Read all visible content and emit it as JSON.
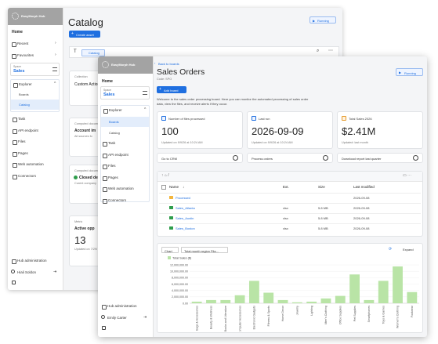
{
  "back_window": {
    "brand": "EasyMorph Hub",
    "home": "Home",
    "nav_top": [
      "Recent",
      "Favourites"
    ],
    "space_label": "Space",
    "space_name": "Sales",
    "explorer": "Explorer",
    "explorer_items": [
      "Boards",
      "Catalog"
    ],
    "nav_items": [
      "Task",
      "API endpoint",
      "Files",
      "Pages",
      "Web automation",
      "Connectors"
    ],
    "admin": "Hub administration",
    "user": "Hiali Soldon",
    "title": "Catalog",
    "create_button": "Create asset",
    "running": "Running",
    "filter_tag": "Catalog",
    "cards": [
      {
        "kind": "Collection",
        "name": "Custom Action"
      },
      {
        "kind": "Computed document",
        "name": "Account im",
        "note": "All sources fo"
      },
      {
        "kind": "Computed document",
        "name": "Closed deal",
        "note": "Curent company"
      },
      {
        "kind": "Metric",
        "name": "Active opp",
        "value": "13",
        "note": "Updated on 7/29/"
      }
    ]
  },
  "front_window": {
    "brand": "EasyMorph Hub",
    "home": "Home",
    "space_label": "Space",
    "space_name": "Sales",
    "explorer": "Explorer",
    "explorer_items": [
      "Boards",
      "Catalog"
    ],
    "nav_items": [
      "Task",
      "API endpoint",
      "Files",
      "Pages",
      "Web automation",
      "Connectors"
    ],
    "admin": "Hub administration",
    "user": "Emily Carter",
    "back_link": "Back to boards",
    "title": "Sales Orders",
    "code": "Code: SPO",
    "add_button": "Add board",
    "running": "Running",
    "description": "Welcome to the sales order processing board. Here you can monitor the automated processing of sales order data, view the files, and receive alerts if they occur.",
    "kpis": [
      {
        "label": "Number of files processed",
        "value": "100",
        "note": "Updated on 9/9/26 at 10:24 AM"
      },
      {
        "label": "Last run",
        "value": "2026-09-09",
        "note": "Updated on 9/9/26 at 10:24 AM"
      },
      {
        "label": "Total Sales 2026",
        "value": "$2.41M",
        "note": "Updated: last month"
      }
    ],
    "actions": [
      "Go to CRM",
      "Process orders",
      "Download report last quarter"
    ],
    "files": {
      "columns": [
        "Name",
        "Ext.",
        "Size",
        "Last modified"
      ],
      "rows": [
        {
          "name": "Processed",
          "modified": "2026-09-08"
        },
        {
          "name": "Sales_Atlanta",
          "ext": "xlsx",
          "size": "5.8 MB",
          "modified": "2026-09-08"
        },
        {
          "name": "Sales_Austin",
          "ext": "xlsx",
          "size": "5.8 MB",
          "modified": "2026-09-08"
        },
        {
          "name": "Sales_Boston",
          "ext": "xlsx",
          "size": "5.8 MB",
          "modified": "2026-09-08"
        }
      ]
    },
    "chart_controls": {
      "view": "Chart",
      "field": "Total month region Fila...",
      "expand": "Expand"
    }
  },
  "chart_data": {
    "type": "bar",
    "categories": [
      "Bags & Accessories",
      "Beauty & Wellness",
      "Books and Literature",
      "Computer Accessories",
      "Electronic Gadgets",
      "Fitness & Sports",
      "Home Decor",
      "Jewelry",
      "Lighting",
      "Men's Clothing",
      "Office Supplies",
      "Pet Supplies",
      "Smartphones",
      "Toys & Games",
      "Women's Clothing",
      "Footwear"
    ],
    "series": [
      {
        "name": "Total Sales ($)",
        "color": "#b9e4a6",
        "values": [
          500000,
          1000000,
          1000000,
          2500000,
          7000000,
          3300000,
          1000000,
          300000,
          500000,
          1500000,
          2300000,
          9000000,
          1000000,
          7000000,
          11500000,
          3500000
        ]
      }
    ],
    "ylim": [
      0,
      12000000
    ],
    "yticks": [
      {
        "value": 0,
        "label": "0.00"
      },
      {
        "value": 2000000,
        "label": "2,000,000.00"
      },
      {
        "value": 4000000,
        "label": "4,000,000.00"
      },
      {
        "value": 6000000,
        "label": "6,000,000.00"
      },
      {
        "value": 8000000,
        "label": "8,000,000.00"
      },
      {
        "value": 10000000,
        "label": "10,000,000.00"
      },
      {
        "value": 12000000,
        "label": "12,000,000.00"
      }
    ],
    "grid": true
  }
}
